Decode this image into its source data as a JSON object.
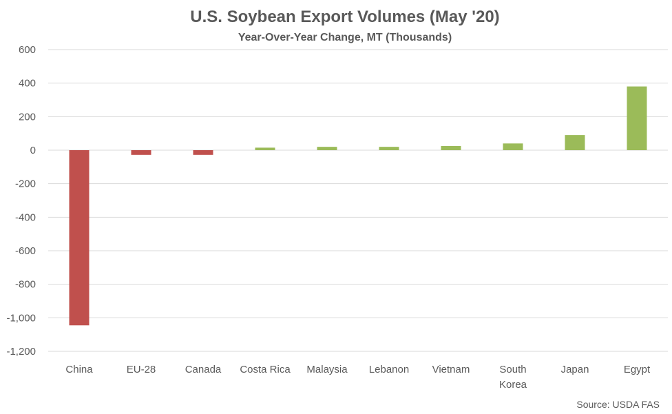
{
  "chart_data": {
    "type": "bar",
    "title": "U.S. Soybean Export Volumes (May '20)",
    "subtitle": "Year-Over-Year Change, MT (Thousands)",
    "categories": [
      [
        "China"
      ],
      [
        "EU-28"
      ],
      [
        "Canada"
      ],
      [
        "Costa Rica"
      ],
      [
        "Malaysia"
      ],
      [
        "Lebanon"
      ],
      [
        "Vietnam"
      ],
      [
        "South",
        "Korea"
      ],
      [
        "Japan"
      ],
      [
        "Egypt"
      ]
    ],
    "values": [
      -1045,
      -28,
      -28,
      15,
      20,
      20,
      25,
      40,
      90,
      380
    ],
    "ylim": [
      -1200,
      600
    ],
    "yticks": [
      600,
      400,
      200,
      0,
      -200,
      -400,
      -600,
      -800,
      -1000,
      -1200
    ],
    "ytick_labels": [
      "600",
      "400",
      "200",
      "0",
      "-200",
      "-400",
      "-600",
      "-800",
      "-1,000",
      "-1,200"
    ],
    "grid": true,
    "colors": {
      "positive": "#9bbb59",
      "negative": "#c0504d"
    },
    "source": "Source: USDA FAS"
  }
}
